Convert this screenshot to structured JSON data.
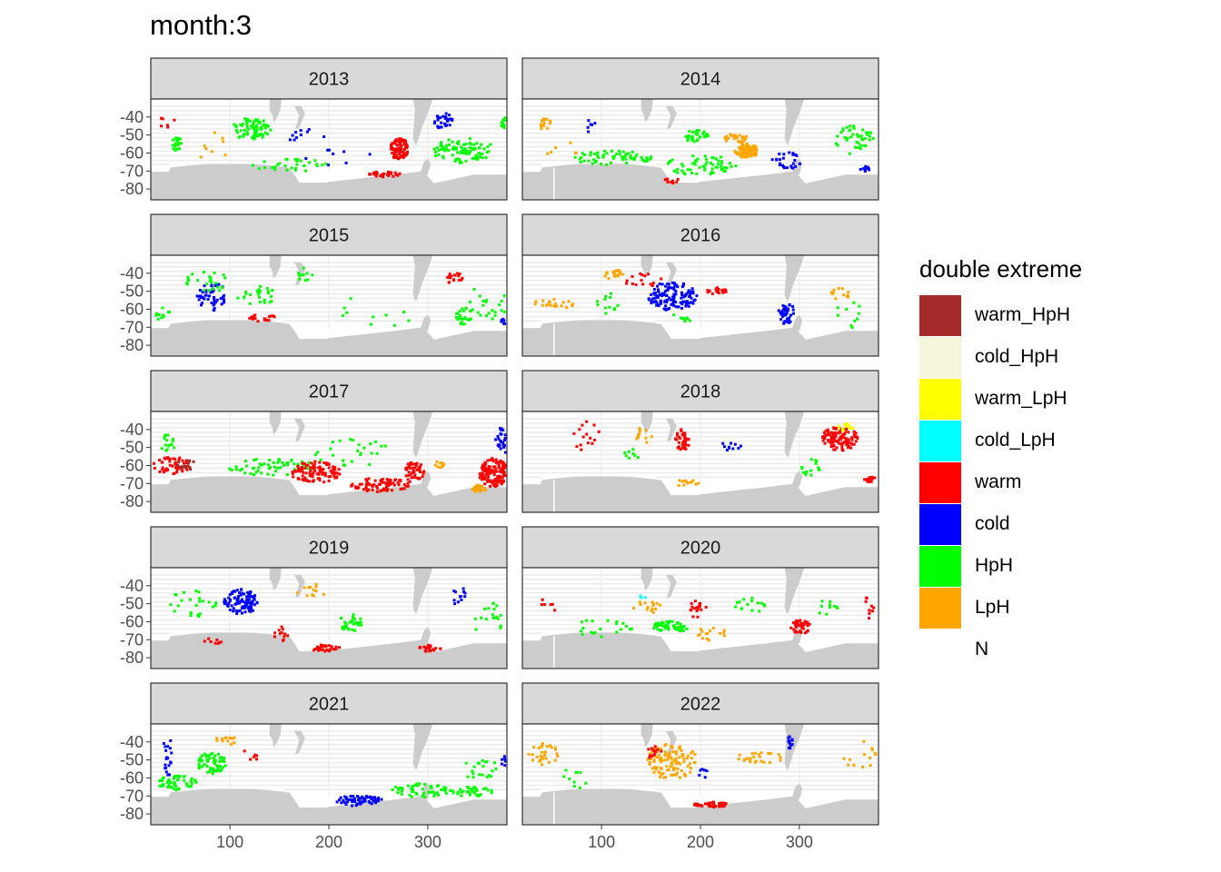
{
  "chart_data": {
    "type": "heatmap",
    "title": "month:3",
    "xlabel": "",
    "ylabel": "",
    "x_ticks": [
      100,
      200,
      300
    ],
    "y_ticks": [
      -40,
      -50,
      -60,
      -70,
      -80
    ],
    "y_tick_labels": [
      "-40",
      "-50",
      "-60",
      "-70",
      "-80"
    ],
    "xlim": [
      20,
      380
    ],
    "ylim": [
      -86,
      -30
    ],
    "legend_title": "double extreme",
    "legend": [
      {
        "label": "warm_HpH",
        "color": "#a52a2a"
      },
      {
        "label": "cold_HpH",
        "color": "#f5f5dc"
      },
      {
        "label": "warm_LpH",
        "color": "#ffff00"
      },
      {
        "label": "cold_LpH",
        "color": "#00ffff"
      },
      {
        "label": "warm",
        "color": "#ff0000"
      },
      {
        "label": "cold",
        "color": "#0000ff"
      },
      {
        "label": "HpH",
        "color": "#00ff00"
      },
      {
        "label": "LpH",
        "color": "#ffa500"
      },
      {
        "label": "N",
        "color": "#ffffff"
      }
    ],
    "land_color": "#cccccc",
    "facets": [
      {
        "label": "2013",
        "blobs": [
          {
            "x": 45,
            "y": -54,
            "rx": 5,
            "ry": 4,
            "cat": "HpH",
            "n": 20
          },
          {
            "x": 120,
            "y": -46,
            "rx": 20,
            "ry": 6,
            "cat": "HpH",
            "n": 70
          },
          {
            "x": 270,
            "y": -57,
            "rx": 9,
            "ry": 6,
            "cat": "warm",
            "n": 90
          },
          {
            "x": 255,
            "y": -71,
            "rx": 16,
            "ry": 1.5,
            "cat": "warm",
            "n": 30
          },
          {
            "x": 315,
            "y": -42,
            "rx": 10,
            "ry": 5,
            "cat": "cold",
            "n": 30
          },
          {
            "x": 335,
            "y": -58,
            "rx": 32,
            "ry": 7,
            "cat": "HpH",
            "n": 90
          },
          {
            "x": 375,
            "y": -42,
            "rx": 4,
            "ry": 4,
            "cat": "HpH",
            "n": 12
          },
          {
            "x": 160,
            "y": -66,
            "rx": 40,
            "ry": 4,
            "cat": "HpH",
            "n": 30
          },
          {
            "x": 200,
            "y": -55,
            "rx": 45,
            "ry": 12,
            "cat": "cold",
            "n": 18
          },
          {
            "x": 80,
            "y": -55,
            "rx": 20,
            "ry": 8,
            "cat": "LpH",
            "n": 8
          },
          {
            "x": 35,
            "y": -42,
            "rx": 8,
            "ry": 4,
            "cat": "warm",
            "n": 6
          }
        ]
      },
      {
        "label": "2014",
        "blobs": [
          {
            "x": 40,
            "y": -43,
            "rx": 8,
            "ry": 3,
            "cat": "LpH",
            "n": 12
          },
          {
            "x": 245,
            "y": -58,
            "rx": 12,
            "ry": 4,
            "cat": "LpH",
            "n": 90
          },
          {
            "x": 235,
            "y": -51,
            "rx": 12,
            "ry": 3,
            "cat": "LpH",
            "n": 25
          },
          {
            "x": 195,
            "y": -50,
            "rx": 12,
            "ry": 4,
            "cat": "HpH",
            "n": 35
          },
          {
            "x": 110,
            "y": -62,
            "rx": 40,
            "ry": 4,
            "cat": "HpH",
            "n": 60
          },
          {
            "x": 200,
            "y": -66,
            "rx": 35,
            "ry": 6,
            "cat": "HpH",
            "n": 60
          },
          {
            "x": 285,
            "y": -64,
            "rx": 15,
            "ry": 6,
            "cat": "cold",
            "n": 25
          },
          {
            "x": 355,
            "y": -52,
            "rx": 20,
            "ry": 8,
            "cat": "HpH",
            "n": 40
          },
          {
            "x": 365,
            "y": -68,
            "rx": 6,
            "ry": 1.5,
            "cat": "cold",
            "n": 10
          },
          {
            "x": 170,
            "y": -75,
            "rx": 10,
            "ry": 1.5,
            "cat": "warm",
            "n": 8
          },
          {
            "x": 85,
            "y": -45,
            "rx": 10,
            "ry": 4,
            "cat": "cold",
            "n": 6
          },
          {
            "x": 60,
            "y": -57,
            "rx": 20,
            "ry": 5,
            "cat": "LpH",
            "n": 6
          }
        ]
      },
      {
        "label": "2015",
        "blobs": [
          {
            "x": 80,
            "y": -52,
            "rx": 15,
            "ry": 8,
            "cat": "cold",
            "n": 50
          },
          {
            "x": 75,
            "y": -44,
            "rx": 25,
            "ry": 6,
            "cat": "HpH",
            "n": 25
          },
          {
            "x": 125,
            "y": -52,
            "rx": 20,
            "ry": 6,
            "cat": "HpH",
            "n": 25
          },
          {
            "x": 130,
            "y": -64,
            "rx": 15,
            "ry": 2,
            "cat": "warm",
            "n": 18
          },
          {
            "x": 175,
            "y": -40,
            "rx": 8,
            "ry": 4,
            "cat": "HpH",
            "n": 10
          },
          {
            "x": 325,
            "y": -42,
            "rx": 10,
            "ry": 3,
            "cat": "warm",
            "n": 18
          },
          {
            "x": 335,
            "y": -62,
            "rx": 10,
            "ry": 6,
            "cat": "HpH",
            "n": 25
          },
          {
            "x": 360,
            "y": -55,
            "rx": 20,
            "ry": 10,
            "cat": "HpH",
            "n": 20
          },
          {
            "x": 375,
            "y": -66,
            "rx": 4,
            "ry": 2,
            "cat": "cold",
            "n": 6
          },
          {
            "x": 30,
            "y": -62,
            "rx": 8,
            "ry": 4,
            "cat": "HpH",
            "n": 10
          },
          {
            "x": 250,
            "y": -60,
            "rx": 40,
            "ry": 10,
            "cat": "HpH",
            "n": 10
          }
        ]
      },
      {
        "label": "2016",
        "blobs": [
          {
            "x": 170,
            "y": -52,
            "rx": 25,
            "ry": 8,
            "cat": "cold",
            "n": 130
          },
          {
            "x": 215,
            "y": -49,
            "rx": 10,
            "ry": 2,
            "cat": "warm",
            "n": 20
          },
          {
            "x": 285,
            "y": -61,
            "rx": 8,
            "ry": 7,
            "cat": "cold",
            "n": 40
          },
          {
            "x": 110,
            "y": -40,
            "rx": 10,
            "ry": 3,
            "cat": "LpH",
            "n": 18
          },
          {
            "x": 140,
            "y": -43,
            "rx": 20,
            "ry": 4,
            "cat": "warm",
            "n": 15
          },
          {
            "x": 50,
            "y": -56,
            "rx": 22,
            "ry": 3,
            "cat": "LpH",
            "n": 20
          },
          {
            "x": 340,
            "y": -50,
            "rx": 10,
            "ry": 4,
            "cat": "LpH",
            "n": 12
          },
          {
            "x": 105,
            "y": -56,
            "rx": 12,
            "ry": 6,
            "cat": "HpH",
            "n": 12
          },
          {
            "x": 180,
            "y": -64,
            "rx": 10,
            "ry": 3,
            "cat": "HpH",
            "n": 8
          },
          {
            "x": 350,
            "y": -62,
            "rx": 15,
            "ry": 10,
            "cat": "HpH",
            "n": 10
          }
        ]
      },
      {
        "label": "2017",
        "blobs": [
          {
            "x": 40,
            "y": -59,
            "rx": 20,
            "ry": 5,
            "cat": "warm",
            "n": 50
          },
          {
            "x": 55,
            "y": -59,
            "rx": 12,
            "ry": 3,
            "cat": "warm_HpH",
            "n": 15
          },
          {
            "x": 140,
            "y": -60,
            "rx": 45,
            "ry": 5,
            "cat": "HpH",
            "n": 60
          },
          {
            "x": 185,
            "y": -63,
            "rx": 25,
            "ry": 6,
            "cat": "warm",
            "n": 100
          },
          {
            "x": 250,
            "y": -70,
            "rx": 30,
            "ry": 4,
            "cat": "warm",
            "n": 80
          },
          {
            "x": 285,
            "y": -63,
            "rx": 10,
            "ry": 6,
            "cat": "warm",
            "n": 50
          },
          {
            "x": 365,
            "y": -63,
            "rx": 15,
            "ry": 8,
            "cat": "warm",
            "n": 140
          },
          {
            "x": 350,
            "y": -72,
            "rx": 8,
            "ry": 2,
            "cat": "LpH",
            "n": 20
          },
          {
            "x": 375,
            "y": -45,
            "rx": 8,
            "ry": 8,
            "cat": "cold",
            "n": 40
          },
          {
            "x": 310,
            "y": -59,
            "rx": 6,
            "ry": 2,
            "cat": "LpH",
            "n": 12
          },
          {
            "x": 35,
            "y": -47,
            "rx": 10,
            "ry": 5,
            "cat": "HpH",
            "n": 15
          },
          {
            "x": 220,
            "y": -52,
            "rx": 40,
            "ry": 8,
            "cat": "HpH",
            "n": 25
          }
        ]
      },
      {
        "label": "2018",
        "blobs": [
          {
            "x": 340,
            "y": -44,
            "rx": 18,
            "ry": 7,
            "cat": "warm",
            "n": 110
          },
          {
            "x": 345,
            "y": -38,
            "rx": 8,
            "ry": 2,
            "cat": "warm_LpH",
            "n": 15
          },
          {
            "x": 180,
            "y": -45,
            "rx": 8,
            "ry": 6,
            "cat": "warm",
            "n": 40
          },
          {
            "x": 140,
            "y": -42,
            "rx": 10,
            "ry": 5,
            "cat": "LpH",
            "n": 12
          },
          {
            "x": 185,
            "y": -69,
            "rx": 12,
            "ry": 2,
            "cat": "LpH",
            "n": 12
          },
          {
            "x": 370,
            "y": -67,
            "rx": 6,
            "ry": 2,
            "cat": "warm",
            "n": 12
          },
          {
            "x": 85,
            "y": -44,
            "rx": 15,
            "ry": 10,
            "cat": "warm",
            "n": 15
          },
          {
            "x": 310,
            "y": -60,
            "rx": 10,
            "ry": 5,
            "cat": "HpH",
            "n": 15
          },
          {
            "x": 230,
            "y": -48,
            "rx": 10,
            "ry": 3,
            "cat": "cold",
            "n": 10
          },
          {
            "x": 130,
            "y": -52,
            "rx": 12,
            "ry": 4,
            "cat": "HpH",
            "n": 8
          }
        ]
      },
      {
        "label": "2019",
        "blobs": [
          {
            "x": 110,
            "y": -48,
            "rx": 18,
            "ry": 7,
            "cat": "cold",
            "n": 100
          },
          {
            "x": 195,
            "y": -74,
            "rx": 15,
            "ry": 2,
            "cat": "warm",
            "n": 30
          },
          {
            "x": 300,
            "y": -74,
            "rx": 12,
            "ry": 2,
            "cat": "warm",
            "n": 20
          },
          {
            "x": 150,
            "y": -66,
            "rx": 8,
            "ry": 4,
            "cat": "warm",
            "n": 12
          },
          {
            "x": 220,
            "y": -60,
            "rx": 12,
            "ry": 5,
            "cat": "HpH",
            "n": 30
          },
          {
            "x": 60,
            "y": -50,
            "rx": 25,
            "ry": 8,
            "cat": "HpH",
            "n": 25
          },
          {
            "x": 360,
            "y": -58,
            "rx": 15,
            "ry": 10,
            "cat": "HpH",
            "n": 18
          },
          {
            "x": 330,
            "y": -45,
            "rx": 8,
            "ry": 6,
            "cat": "cold",
            "n": 12
          },
          {
            "x": 180,
            "y": -42,
            "rx": 15,
            "ry": 5,
            "cat": "LpH",
            "n": 12
          },
          {
            "x": 80,
            "y": -70,
            "rx": 10,
            "ry": 2,
            "cat": "warm",
            "n": 8
          }
        ]
      },
      {
        "label": "2020",
        "blobs": [
          {
            "x": 170,
            "y": -62,
            "rx": 20,
            "ry": 3,
            "cat": "HpH",
            "n": 50
          },
          {
            "x": 300,
            "y": -62,
            "rx": 10,
            "ry": 4,
            "cat": "warm",
            "n": 40
          },
          {
            "x": 195,
            "y": -52,
            "rx": 10,
            "ry": 5,
            "cat": "warm",
            "n": 18
          },
          {
            "x": 210,
            "y": -66,
            "rx": 15,
            "ry": 4,
            "cat": "LpH",
            "n": 15
          },
          {
            "x": 145,
            "y": -51,
            "rx": 15,
            "ry": 4,
            "cat": "LpH",
            "n": 15
          },
          {
            "x": 100,
            "y": -62,
            "rx": 30,
            "ry": 6,
            "cat": "HpH",
            "n": 20
          },
          {
            "x": 250,
            "y": -50,
            "rx": 20,
            "ry": 4,
            "cat": "HpH",
            "n": 15
          },
          {
            "x": 330,
            "y": -52,
            "rx": 15,
            "ry": 6,
            "cat": "HpH",
            "n": 10
          },
          {
            "x": 370,
            "y": -50,
            "rx": 5,
            "ry": 8,
            "cat": "warm",
            "n": 10
          },
          {
            "x": 140,
            "y": -46,
            "rx": 4,
            "ry": 2,
            "cat": "cold_LpH",
            "n": 3
          },
          {
            "x": 45,
            "y": -50,
            "rx": 10,
            "ry": 4,
            "cat": "warm",
            "n": 6
          }
        ]
      },
      {
        "label": "2021",
        "blobs": [
          {
            "x": 80,
            "y": -51,
            "rx": 15,
            "ry": 6,
            "cat": "HpH",
            "n": 60
          },
          {
            "x": 45,
            "y": -62,
            "rx": 20,
            "ry": 4,
            "cat": "HpH",
            "n": 50
          },
          {
            "x": 230,
            "y": -72,
            "rx": 25,
            "ry": 3,
            "cat": "cold",
            "n": 60
          },
          {
            "x": 290,
            "y": -66,
            "rx": 30,
            "ry": 4,
            "cat": "HpH",
            "n": 50
          },
          {
            "x": 340,
            "y": -67,
            "rx": 25,
            "ry": 3,
            "cat": "HpH",
            "n": 40
          },
          {
            "x": 350,
            "y": -54,
            "rx": 20,
            "ry": 6,
            "cat": "HpH",
            "n": 20
          },
          {
            "x": 35,
            "y": -48,
            "rx": 6,
            "ry": 12,
            "cat": "cold",
            "n": 20
          },
          {
            "x": 95,
            "y": -38,
            "rx": 10,
            "ry": 3,
            "cat": "LpH",
            "n": 12
          },
          {
            "x": 375,
            "y": -50,
            "rx": 4,
            "ry": 4,
            "cat": "cold",
            "n": 6
          },
          {
            "x": 120,
            "y": -46,
            "rx": 10,
            "ry": 4,
            "cat": "warm",
            "n": 6
          }
        ]
      },
      {
        "label": "2022",
        "blobs": [
          {
            "x": 170,
            "y": -50,
            "rx": 25,
            "ry": 10,
            "cat": "LpH",
            "n": 110
          },
          {
            "x": 210,
            "y": -74,
            "rx": 18,
            "ry": 1.5,
            "cat": "warm",
            "n": 40
          },
          {
            "x": 40,
            "y": -46,
            "rx": 15,
            "ry": 6,
            "cat": "LpH",
            "n": 30
          },
          {
            "x": 290,
            "y": -40,
            "rx": 4,
            "ry": 4,
            "cat": "cold",
            "n": 12
          },
          {
            "x": 260,
            "y": -48,
            "rx": 25,
            "ry": 3,
            "cat": "LpH",
            "n": 25
          },
          {
            "x": 150,
            "y": -45,
            "rx": 10,
            "ry": 4,
            "cat": "warm",
            "n": 12
          },
          {
            "x": 70,
            "y": -60,
            "rx": 15,
            "ry": 6,
            "cat": "HpH",
            "n": 10
          },
          {
            "x": 360,
            "y": -46,
            "rx": 20,
            "ry": 8,
            "cat": "LpH",
            "n": 15
          },
          {
            "x": 200,
            "y": -56,
            "rx": 8,
            "ry": 4,
            "cat": "cold",
            "n": 6
          }
        ]
      }
    ]
  }
}
